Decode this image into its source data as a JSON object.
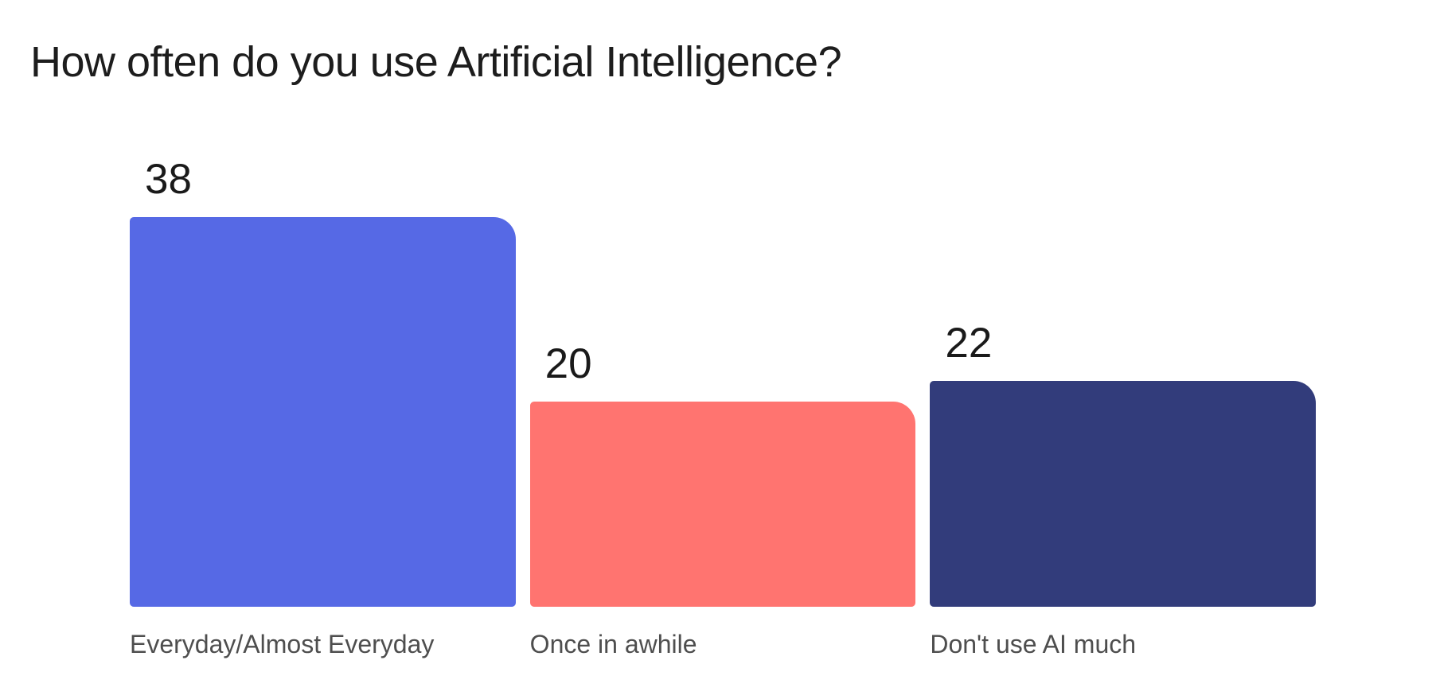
{
  "page": {
    "background": "#ffffff"
  },
  "header": {
    "title": "How often do you use Artificial Intelligence?"
  },
  "chart_data": {
    "type": "bar",
    "title": "How often do you use Artificial Intelligence?",
    "categories": [
      "Everyday/Almost Everyday",
      "Once in awhile",
      "Don't use AI much"
    ],
    "values": [
      38,
      20,
      22
    ],
    "value_labels": [
      "38",
      "20",
      "22"
    ],
    "bar_colors": [
      "#5669e5",
      "#ff7470",
      "#323c7b"
    ],
    "orientation": "vertical",
    "ylim": [
      0,
      38
    ],
    "grid": false,
    "legend": false,
    "axes_shown": false,
    "value_label_position": "above-bar-left",
    "category_label_position": "below-bar-left"
  },
  "colors": {
    "title_text": "#1d1d1d",
    "value_text": "#1a1a1a",
    "category_text": "#4e4e4e",
    "background": "#ffffff"
  }
}
